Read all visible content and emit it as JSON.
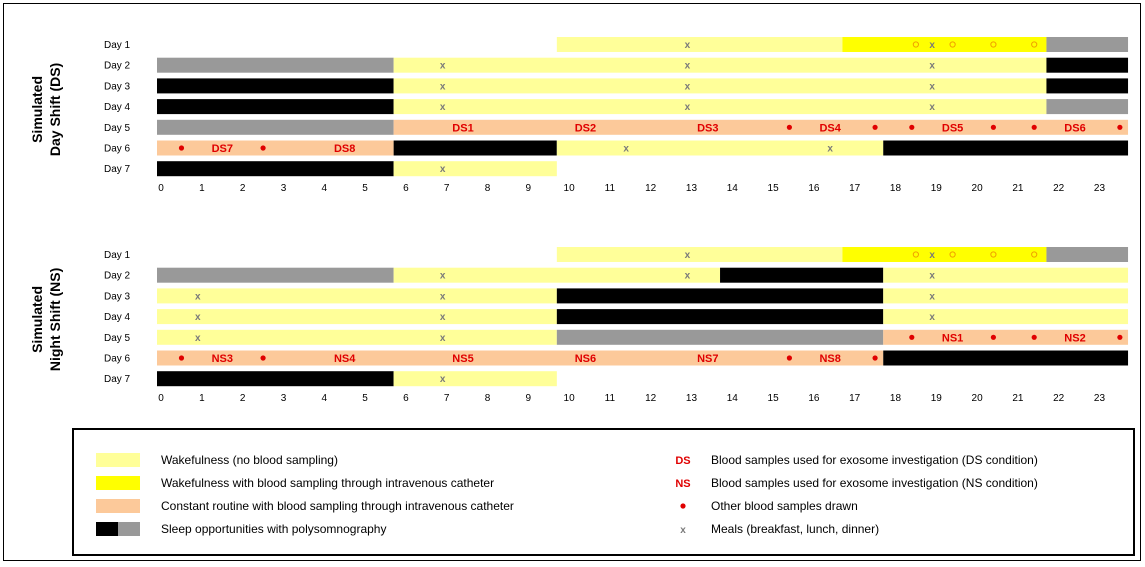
{
  "colors": {
    "wake": "#ffff99",
    "wake_sampling": "#ffff00",
    "routine": "#fcc99a",
    "sleep_black": "#000000",
    "sleep_gray": "#999999",
    "marker_red": "#e00000",
    "meal_gray": "#7a7a7a",
    "circle_orange": "#f0a000"
  },
  "hours": [
    "0",
    "1",
    "2",
    "3",
    "4",
    "5",
    "6",
    "7",
    "8",
    "9",
    "10",
    "11",
    "12",
    "13",
    "14",
    "15",
    "16",
    "17",
    "18",
    "19",
    "20",
    "21",
    "22",
    "23"
  ],
  "panels": [
    {
      "title_line1": "Simulated",
      "title_line2": "Day Shift (DS)",
      "rows": [
        {
          "label": "Day 1",
          "segments": [
            {
              "s": 9.8,
              "e": 16.8,
              "c": "wake"
            },
            {
              "s": 16.8,
              "e": 21.8,
              "c": "wake_sampling"
            },
            {
              "s": 21.8,
              "e": 23.8,
              "c": "sleep_gray"
            }
          ],
          "meals": [
            13.0,
            19.0
          ],
          "circles": [
            18.6,
            19.5,
            20.5,
            21.5
          ],
          "dots": [],
          "labels": []
        },
        {
          "label": "Day 2",
          "segments": [
            {
              "s": 0,
              "e": 5.8,
              "c": "sleep_gray"
            },
            {
              "s": 5.8,
              "e": 21.8,
              "c": "wake"
            },
            {
              "s": 21.8,
              "e": 23.8,
              "c": "sleep_black"
            }
          ],
          "meals": [
            7.0,
            13.0,
            19.0
          ],
          "circles": [],
          "dots": [],
          "labels": []
        },
        {
          "label": "Day 3",
          "segments": [
            {
              "s": 0,
              "e": 5.8,
              "c": "sleep_black"
            },
            {
              "s": 5.8,
              "e": 21.8,
              "c": "wake"
            },
            {
              "s": 21.8,
              "e": 23.8,
              "c": "sleep_black"
            }
          ],
          "meals": [
            7.0,
            13.0,
            19.0
          ],
          "circles": [],
          "dots": [],
          "labels": []
        },
        {
          "label": "Day 4",
          "segments": [
            {
              "s": 0,
              "e": 5.8,
              "c": "sleep_black"
            },
            {
              "s": 5.8,
              "e": 21.8,
              "c": "wake"
            },
            {
              "s": 21.8,
              "e": 23.8,
              "c": "sleep_gray"
            }
          ],
          "meals": [
            7.0,
            13.0,
            19.0
          ],
          "circles": [],
          "dots": [],
          "labels": []
        },
        {
          "label": "Day 5",
          "segments": [
            {
              "s": 0,
              "e": 5.8,
              "c": "sleep_gray"
            },
            {
              "s": 5.8,
              "e": 23.8,
              "c": "routine"
            }
          ],
          "meals": [],
          "circles": [],
          "dots": [
            15.5,
            17.6,
            18.5,
            20.5,
            21.5,
            23.6
          ],
          "labels": [
            {
              "x": 7.5,
              "t": "DS1"
            },
            {
              "x": 10.5,
              "t": "DS2"
            },
            {
              "x": 13.5,
              "t": "DS3"
            },
            {
              "x": 16.5,
              "t": "DS4"
            },
            {
              "x": 19.5,
              "t": "DS5"
            },
            {
              "x": 22.5,
              "t": "DS6"
            }
          ]
        },
        {
          "label": "Day 6",
          "segments": [
            {
              "s": 0,
              "e": 5.8,
              "c": "routine"
            },
            {
              "s": 5.8,
              "e": 9.8,
              "c": "sleep_black"
            },
            {
              "s": 9.8,
              "e": 17.8,
              "c": "wake"
            },
            {
              "s": 17.8,
              "e": 23.8,
              "c": "sleep_black"
            }
          ],
          "meals": [
            11.5,
            16.5
          ],
          "circles": [],
          "dots": [
            0.6,
            2.6
          ],
          "labels": [
            {
              "x": 1.6,
              "t": "DS7"
            },
            {
              "x": 4.6,
              "t": "DS8"
            }
          ]
        },
        {
          "label": "Day 7",
          "segments": [
            {
              "s": 0,
              "e": 5.8,
              "c": "sleep_black"
            },
            {
              "s": 5.8,
              "e": 9.8,
              "c": "wake"
            }
          ],
          "meals": [
            7.0
          ],
          "circles": [],
          "dots": [],
          "labels": []
        }
      ]
    },
    {
      "title_line1": "Simulated",
      "title_line2": "Night Shift (NS)",
      "rows": [
        {
          "label": "Day 1",
          "segments": [
            {
              "s": 9.8,
              "e": 16.8,
              "c": "wake"
            },
            {
              "s": 16.8,
              "e": 21.8,
              "c": "wake_sampling"
            },
            {
              "s": 21.8,
              "e": 23.8,
              "c": "sleep_gray"
            }
          ],
          "meals": [
            13.0,
            19.0
          ],
          "circles": [
            18.6,
            19.5,
            20.5,
            21.5
          ],
          "dots": [],
          "labels": []
        },
        {
          "label": "Day 2",
          "segments": [
            {
              "s": 0,
              "e": 5.8,
              "c": "sleep_gray"
            },
            {
              "s": 5.8,
              "e": 13.8,
              "c": "wake"
            },
            {
              "s": 13.8,
              "e": 17.8,
              "c": "sleep_black"
            },
            {
              "s": 17.8,
              "e": 23.8,
              "c": "wake"
            }
          ],
          "meals": [
            7.0,
            13.0,
            19.0
          ],
          "circles": [],
          "dots": [],
          "labels": []
        },
        {
          "label": "Day 3",
          "segments": [
            {
              "s": 0,
              "e": 9.8,
              "c": "wake"
            },
            {
              "s": 9.8,
              "e": 17.8,
              "c": "sleep_black"
            },
            {
              "s": 17.8,
              "e": 23.8,
              "c": "wake"
            }
          ],
          "meals": [
            1.0,
            7.0,
            19.0
          ],
          "circles": [],
          "dots": [],
          "labels": []
        },
        {
          "label": "Day 4",
          "segments": [
            {
              "s": 0,
              "e": 9.8,
              "c": "wake"
            },
            {
              "s": 9.8,
              "e": 17.8,
              "c": "sleep_black"
            },
            {
              "s": 17.8,
              "e": 23.8,
              "c": "wake"
            }
          ],
          "meals": [
            1.0,
            7.0,
            19.0
          ],
          "circles": [],
          "dots": [],
          "labels": []
        },
        {
          "label": "Day 5",
          "segments": [
            {
              "s": 0,
              "e": 9.8,
              "c": "wake"
            },
            {
              "s": 9.8,
              "e": 17.8,
              "c": "sleep_gray"
            },
            {
              "s": 17.8,
              "e": 23.8,
              "c": "routine"
            }
          ],
          "meals": [
            1.0,
            7.0
          ],
          "circles": [],
          "dots": [
            18.5,
            20.5,
            21.5,
            23.6
          ],
          "labels": [
            {
              "x": 19.5,
              "t": "NS1"
            },
            {
              "x": 22.5,
              "t": "NS2"
            }
          ]
        },
        {
          "label": "Day 6",
          "segments": [
            {
              "s": 0,
              "e": 17.8,
              "c": "routine"
            },
            {
              "s": 17.8,
              "e": 23.8,
              "c": "sleep_black"
            }
          ],
          "meals": [],
          "circles": [],
          "dots": [
            0.6,
            2.6,
            15.5,
            17.6
          ],
          "labels": [
            {
              "x": 1.6,
              "t": "NS3"
            },
            {
              "x": 4.6,
              "t": "NS4"
            },
            {
              "x": 7.5,
              "t": "NS5"
            },
            {
              "x": 10.5,
              "t": "NS6"
            },
            {
              "x": 13.5,
              "t": "NS7"
            },
            {
              "x": 16.5,
              "t": "NS8"
            }
          ]
        },
        {
          "label": "Day 7",
          "segments": [
            {
              "s": 0,
              "e": 5.8,
              "c": "sleep_black"
            },
            {
              "s": 5.8,
              "e": 9.8,
              "c": "wake"
            }
          ],
          "meals": [
            7.0
          ],
          "circles": [],
          "dots": [],
          "labels": []
        }
      ]
    }
  ],
  "legend": {
    "wake": "Wakefulness (no blood sampling)",
    "wake_sampling": "Wakefulness with blood sampling through intravenous catheter",
    "routine": "Constant routine with blood sampling through intravenous catheter",
    "sleep": "Sleep opportunities with polysomnography",
    "ds_symbol": "DS",
    "ds_text": "Blood samples used for exosome investigation (DS condition)",
    "ns_symbol": "NS",
    "ns_text": "Blood samples used for exosome investigation (NS condition)",
    "dot_text": "Other blood samples drawn",
    "meal_symbol": "x",
    "meal_text": "Meals (breakfast, lunch, dinner)"
  }
}
